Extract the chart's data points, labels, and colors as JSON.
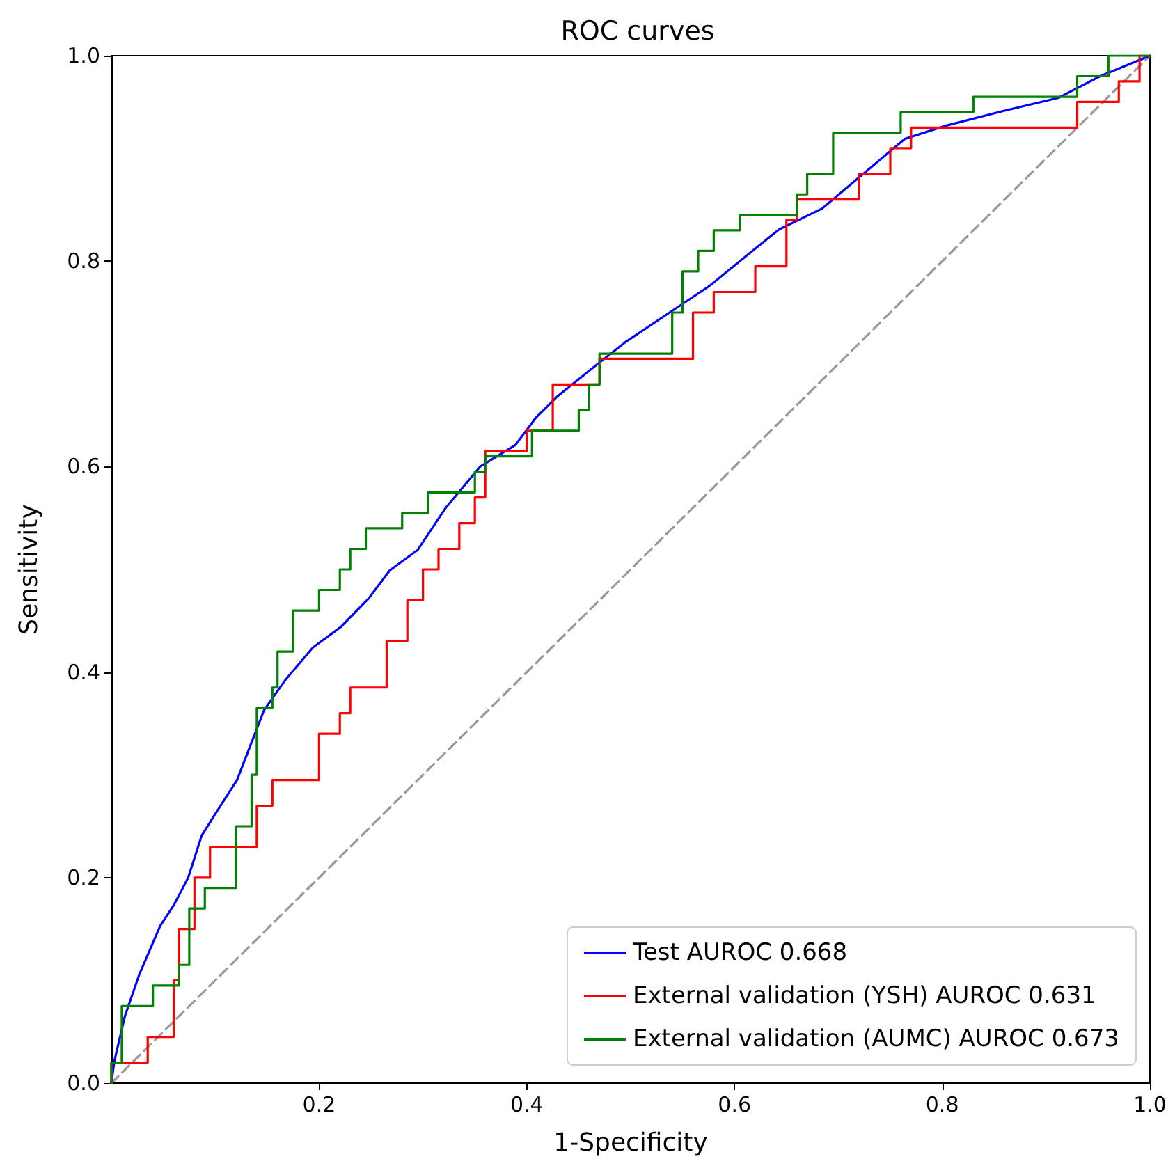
{
  "chart_data": {
    "type": "line",
    "title": "ROC curves",
    "xlabel": "1-Specificity",
    "ylabel": "Sensitivity",
    "xlim": [
      0,
      1
    ],
    "ylim": [
      0,
      1
    ],
    "xticks": [
      0.2,
      0.4,
      0.6,
      0.8,
      {
        "value": 1,
        "label": "1.0"
      }
    ],
    "yticks": [
      {
        "value": 0,
        "label": "0.0"
      },
      0.2,
      0.4,
      0.6,
      0.8,
      {
        "value": 1,
        "label": "1.0"
      }
    ],
    "grid": false,
    "legend": "bottom right",
    "marker": "none",
    "series": [
      {
        "name": "Test AUROC 0.668",
        "color": "#0000ff",
        "x": [
          0,
          0.003,
          0.013,
          0.027,
          0.047,
          0.06,
          0.074,
          0.087,
          0.1,
          0.121,
          0.134,
          0.147,
          0.168,
          0.194,
          0.221,
          0.248,
          0.268,
          0.295,
          0.322,
          0.355,
          0.389,
          0.409,
          0.429,
          0.462,
          0.496,
          0.536,
          0.576,
          0.61,
          0.643,
          0.684,
          0.724,
          0.764,
          0.804,
          0.858,
          0.912,
          0.952,
          1
        ],
        "values": [
          0,
          0.022,
          0.065,
          0.106,
          0.153,
          0.173,
          0.2,
          0.241,
          0.262,
          0.295,
          0.329,
          0.363,
          0.393,
          0.424,
          0.444,
          0.472,
          0.499,
          0.519,
          0.56,
          0.6,
          0.621,
          0.648,
          0.668,
          0.695,
          0.722,
          0.749,
          0.776,
          0.804,
          0.831,
          0.851,
          0.885,
          0.919,
          0.932,
          0.946,
          0.959,
          0.98,
          1
        ]
      },
      {
        "name": "External validation (YSH) AUROC 0.631",
        "color": "#ff0000",
        "x": [
          0,
          0,
          0.035,
          0.035,
          0.06,
          0.06,
          0.065,
          0.065,
          0.08,
          0.08,
          0.095,
          0.095,
          0.14,
          0.14,
          0.155,
          0.155,
          0.2,
          0.2,
          0.22,
          0.22,
          0.23,
          0.23,
          0.265,
          0.265,
          0.285,
          0.285,
          0.3,
          0.3,
          0.315,
          0.315,
          0.335,
          0.335,
          0.35,
          0.35,
          0.36,
          0.36,
          0.4,
          0.4,
          0.425,
          0.425,
          0.47,
          0.47,
          0.56,
          0.56,
          0.58,
          0.58,
          0.62,
          0.62,
          0.65,
          0.65,
          0.66,
          0.66,
          0.72,
          0.72,
          0.75,
          0.75,
          0.77,
          0.77,
          0.93,
          0.93,
          0.97,
          0.97,
          0.99,
          0.99,
          1
        ],
        "values": [
          0,
          0.02,
          0.02,
          0.045,
          0.045,
          0.1,
          0.1,
          0.15,
          0.15,
          0.2,
          0.2,
          0.23,
          0.23,
          0.27,
          0.27,
          0.295,
          0.295,
          0.34,
          0.34,
          0.36,
          0.36,
          0.385,
          0.385,
          0.43,
          0.43,
          0.47,
          0.47,
          0.5,
          0.5,
          0.52,
          0.52,
          0.545,
          0.545,
          0.57,
          0.57,
          0.615,
          0.615,
          0.635,
          0.635,
          0.68,
          0.68,
          0.705,
          0.705,
          0.75,
          0.75,
          0.77,
          0.77,
          0.795,
          0.795,
          0.84,
          0.84,
          0.86,
          0.86,
          0.885,
          0.885,
          0.91,
          0.91,
          0.93,
          0.93,
          0.955,
          0.955,
          0.975,
          0.975,
          1,
          1
        ]
      },
      {
        "name": "External validation (AUMC) AUROC 0.673",
        "color": "#008000",
        "x": [
          0,
          0,
          0.01,
          0.01,
          0.04,
          0.04,
          0.065,
          0.065,
          0.075,
          0.075,
          0.09,
          0.09,
          0.12,
          0.12,
          0.135,
          0.135,
          0.14,
          0.14,
          0.155,
          0.155,
          0.16,
          0.16,
          0.175,
          0.175,
          0.2,
          0.2,
          0.22,
          0.22,
          0.23,
          0.23,
          0.245,
          0.245,
          0.28,
          0.28,
          0.305,
          0.305,
          0.35,
          0.35,
          0.36,
          0.36,
          0.405,
          0.405,
          0.45,
          0.45,
          0.46,
          0.46,
          0.47,
          0.47,
          0.54,
          0.54,
          0.55,
          0.55,
          0.565,
          0.565,
          0.58,
          0.58,
          0.605,
          0.605,
          0.66,
          0.66,
          0.67,
          0.67,
          0.695,
          0.695,
          0.76,
          0.76,
          0.83,
          0.83,
          0.93,
          0.93,
          0.96,
          0.96,
          1
        ],
        "values": [
          0,
          0.02,
          0.02,
          0.075,
          0.075,
          0.095,
          0.095,
          0.115,
          0.115,
          0.17,
          0.17,
          0.19,
          0.19,
          0.25,
          0.25,
          0.3,
          0.3,
          0.365,
          0.365,
          0.385,
          0.385,
          0.42,
          0.42,
          0.46,
          0.46,
          0.48,
          0.48,
          0.5,
          0.5,
          0.52,
          0.52,
          0.54,
          0.54,
          0.555,
          0.555,
          0.575,
          0.575,
          0.595,
          0.595,
          0.61,
          0.61,
          0.635,
          0.635,
          0.655,
          0.655,
          0.68,
          0.68,
          0.71,
          0.71,
          0.75,
          0.75,
          0.79,
          0.79,
          0.81,
          0.81,
          0.83,
          0.83,
          0.845,
          0.845,
          0.865,
          0.865,
          0.885,
          0.885,
          0.925,
          0.925,
          0.945,
          0.945,
          0.96,
          0.96,
          0.98,
          0.98,
          1,
          1
        ]
      },
      {
        "color": "#999999",
        "line_style": "dashed",
        "x": [
          0,
          1
        ],
        "values": [
          0,
          1
        ]
      }
    ]
  }
}
